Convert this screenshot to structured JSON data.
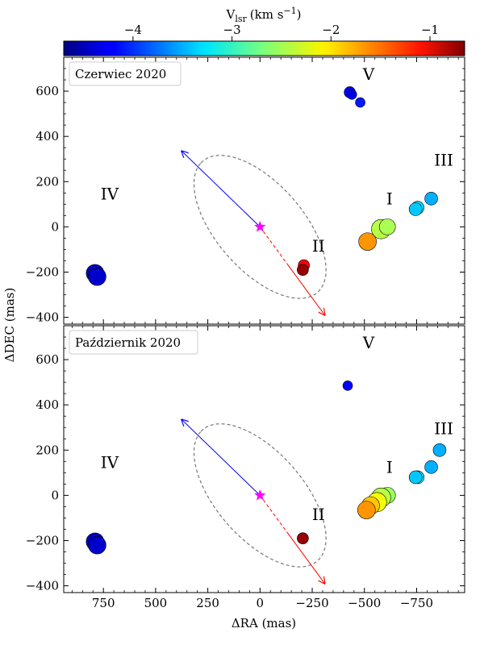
{
  "chart_data": {
    "type": "scatter",
    "xlabel": "ΔRA (mas)",
    "ylabel": "ΔDEC (mas)",
    "xlim": [
      940,
      -980
    ],
    "ylim": [
      -430,
      750
    ],
    "x_ticks": [
      750,
      500,
      250,
      0,
      -250,
      -500,
      -750
    ],
    "x_tick_labels": [
      "750",
      "500",
      "250",
      "0",
      "−250",
      "−500",
      "−750"
    ],
    "y_ticks": [
      -400,
      -200,
      0,
      200,
      400,
      600
    ],
    "y_tick_labels": [
      "−400",
      "−200",
      "0",
      "200",
      "400",
      "600"
    ],
    "colorbar": {
      "label_main": "V",
      "label_sub": "lsr",
      "label_unit": "(km s",
      "label_exp": "−1",
      "label_close": ")",
      "range": [
        -4.7,
        -0.65
      ],
      "ticks": [
        -4,
        -3,
        -2,
        -1
      ],
      "tick_labels": [
        "−4",
        "−3",
        "−2",
        "−1"
      ]
    },
    "center_star": {
      "x": 0,
      "y": 0,
      "color": "#ff00ff"
    },
    "ellipse": {
      "cx": 0,
      "cy": 0,
      "semi_major": 400,
      "semi_minor": 200,
      "pa_deg": 45,
      "color": "#777777"
    },
    "arrows": [
      {
        "x1": 0,
        "y1": 0,
        "x2": 375,
        "y2": 335,
        "color": "#0000ff",
        "style": "solid"
      },
      {
        "x1": 0,
        "y1": 0,
        "x2": -310,
        "y2": -390,
        "color": "#ff0000",
        "style": "dashed-then-solid"
      }
    ],
    "panels": [
      {
        "legend": "Czerwiec 2020",
        "groups": [
          {
            "label": "I",
            "x": -620,
            "y": 100
          },
          {
            "label": "II",
            "x": -280,
            "y": -110
          },
          {
            "label": "III",
            "x": -880,
            "y": 270
          },
          {
            "label": "IV",
            "x": 720,
            "y": 120
          },
          {
            "label": "V",
            "x": -520,
            "y": 650
          }
        ],
        "points": [
          {
            "x": 790,
            "y": -205,
            "v": -4.45,
            "size": 11
          },
          {
            "x": 780,
            "y": -220,
            "v": -4.4,
            "size": 11
          },
          {
            "x": -430,
            "y": 595,
            "v": -4.2,
            "size": 7
          },
          {
            "x": -440,
            "y": 585,
            "v": -4.3,
            "size": 6
          },
          {
            "x": -480,
            "y": 550,
            "v": -4.1,
            "size": 6
          },
          {
            "x": -820,
            "y": 125,
            "v": -3.5,
            "size": 8
          },
          {
            "x": -755,
            "y": 85,
            "v": -3.3,
            "size": 8
          },
          {
            "x": -745,
            "y": 78,
            "v": -3.4,
            "size": 8
          },
          {
            "x": -580,
            "y": -10,
            "v": -2.45,
            "size": 12
          },
          {
            "x": -610,
            "y": 0,
            "v": -2.5,
            "size": 10
          },
          {
            "x": -515,
            "y": -65,
            "v": -1.75,
            "size": 11
          },
          {
            "x": -210,
            "y": -170,
            "v": -1.15,
            "size": 7
          },
          {
            "x": -205,
            "y": -190,
            "v": -0.75,
            "size": 7
          }
        ]
      },
      {
        "legend": "Październik 2020",
        "groups": [
          {
            "label": "I",
            "x": -620,
            "y": 100
          },
          {
            "label": "II",
            "x": -280,
            "y": -110
          },
          {
            "label": "III",
            "x": -880,
            "y": 270
          },
          {
            "label": "IV",
            "x": 720,
            "y": 120
          },
          {
            "label": "V",
            "x": -520,
            "y": 650
          }
        ],
        "points": [
          {
            "x": 790,
            "y": -205,
            "v": -4.45,
            "size": 11
          },
          {
            "x": 780,
            "y": -220,
            "v": -4.4,
            "size": 11
          },
          {
            "x": -420,
            "y": 485,
            "v": -4.2,
            "size": 6
          },
          {
            "x": -860,
            "y": 200,
            "v": -3.5,
            "size": 8
          },
          {
            "x": -820,
            "y": 125,
            "v": -3.5,
            "size": 8
          },
          {
            "x": -755,
            "y": 80,
            "v": -3.3,
            "size": 8
          },
          {
            "x": -745,
            "y": 80,
            "v": -3.4,
            "size": 8
          },
          {
            "x": -610,
            "y": 0,
            "v": -2.55,
            "size": 10
          },
          {
            "x": -580,
            "y": -10,
            "v": -2.45,
            "size": 12
          },
          {
            "x": -560,
            "y": -30,
            "v": -2.2,
            "size": 12
          },
          {
            "x": -530,
            "y": -45,
            "v": -1.95,
            "size": 11
          },
          {
            "x": -510,
            "y": -65,
            "v": -1.75,
            "size": 11
          },
          {
            "x": -205,
            "y": -190,
            "v": -0.75,
            "size": 7
          }
        ]
      }
    ]
  }
}
